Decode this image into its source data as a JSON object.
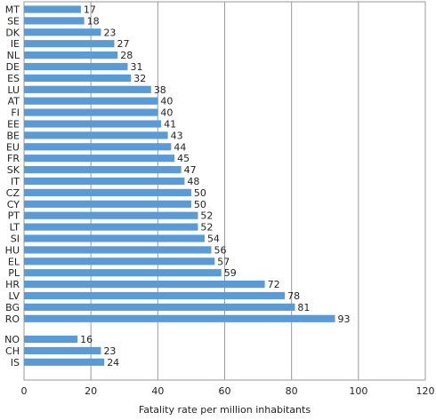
{
  "chart_data": {
    "type": "bar",
    "orientation": "horizontal",
    "xlabel": "Fatality rate per million inhabitants",
    "xlim": [
      0,
      120
    ],
    "xticks": [
      0,
      20,
      40,
      60,
      80,
      100,
      120
    ],
    "grid": "vertical",
    "bar_color": "#5b9bd5",
    "groups": [
      {
        "categories": [
          "MT",
          "SE",
          "DK",
          "IE",
          "NL",
          "DE",
          "ES",
          "LU",
          "AT",
          "FI",
          "EE",
          "BE",
          "EU",
          "FR",
          "SK",
          "IT",
          "CZ",
          "CY",
          "PT",
          "LT",
          "SI",
          "HU",
          "EL",
          "PL",
          "HR",
          "LV",
          "BG",
          "RO"
        ],
        "values": [
          17,
          18,
          23,
          27,
          28,
          31,
          32,
          38,
          40,
          40,
          41,
          43,
          44,
          45,
          47,
          48,
          50,
          50,
          52,
          52,
          54,
          56,
          57,
          59,
          72,
          78,
          81,
          93
        ]
      },
      {
        "categories": [
          "NO",
          "CH",
          "IS"
        ],
        "values": [
          16,
          23,
          24
        ]
      }
    ]
  }
}
